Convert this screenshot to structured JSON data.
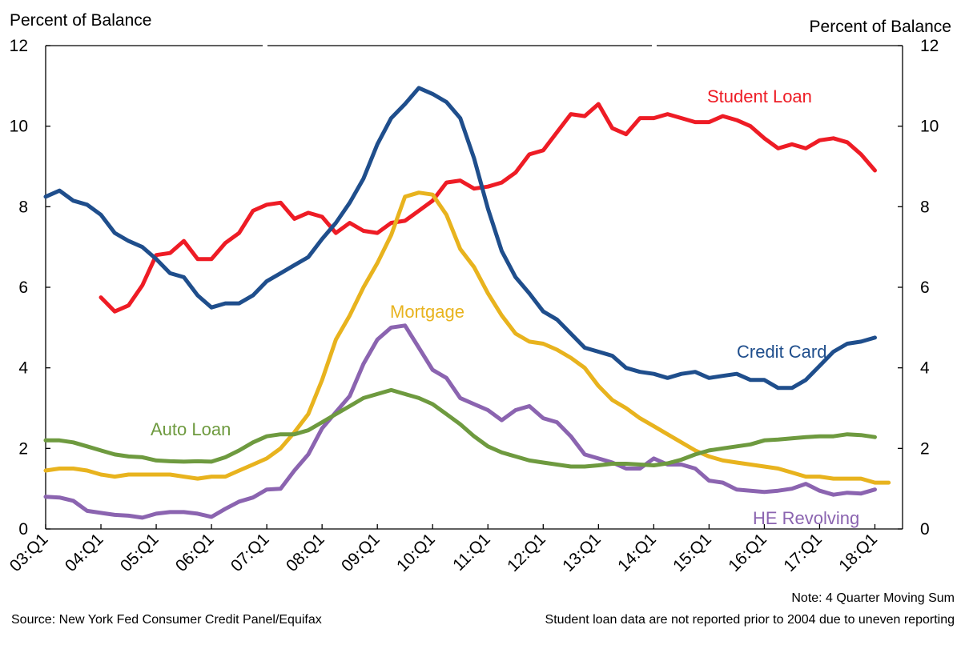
{
  "chart_data": {
    "type": "line",
    "y_axis_label_left": "Percent of Balance",
    "y_axis_label_right": "Percent of Balance",
    "ylim": [
      0,
      12
    ],
    "yticks": [
      0,
      2,
      4,
      6,
      8,
      10,
      12
    ],
    "xticks": [
      "03:Q1",
      "04:Q1",
      "05:Q1",
      "06:Q1",
      "07:Q1",
      "08:Q1",
      "09:Q1",
      "10:Q1",
      "11:Q1",
      "12:Q1",
      "13:Q1",
      "14:Q1",
      "15:Q1",
      "16:Q1",
      "17:Q1",
      "18:Q1"
    ],
    "grid": false,
    "legend": "labels placed on the lines",
    "x_start": "2003:Q1",
    "series": [
      {
        "name": "Student Loan",
        "color": "#ee1c25",
        "start": "2004:Q1",
        "label_anchor": "2014:Q2",
        "values": [
          5.75,
          5.4,
          5.55,
          6.05,
          6.8,
          6.85,
          7.15,
          6.7,
          6.7,
          7.1,
          7.35,
          7.9,
          8.05,
          8.1,
          7.7,
          7.85,
          7.75,
          7.35,
          7.6,
          7.4,
          7.35,
          7.6,
          7.65,
          7.9,
          8.15,
          8.6,
          8.65,
          8.45,
          8.5,
          8.6,
          8.85,
          9.3,
          9.4,
          9.85,
          10.3,
          10.25,
          10.55,
          9.95,
          9.8,
          10.2,
          10.2,
          10.3,
          10.2,
          10.1,
          10.1,
          10.25,
          10.15,
          10.0,
          9.7,
          9.45,
          9.55,
          9.45,
          9.65,
          9.7,
          9.6,
          9.3,
          8.9
        ]
      },
      {
        "name": "Credit Card",
        "color": "#1f4e8c",
        "start": "2003:Q1",
        "label_anchor": "2015:Q3",
        "values": [
          8.25,
          8.4,
          8.15,
          8.05,
          7.8,
          7.35,
          7.15,
          7.0,
          6.7,
          6.35,
          6.25,
          5.8,
          5.5,
          5.6,
          5.6,
          5.8,
          6.15,
          6.35,
          6.55,
          6.75,
          7.2,
          7.6,
          8.1,
          8.7,
          9.55,
          10.2,
          10.55,
          10.95,
          10.8,
          10.6,
          10.2,
          9.2,
          7.95,
          6.9,
          6.25,
          5.85,
          5.4,
          5.2,
          4.85,
          4.5,
          4.4,
          4.3,
          4.0,
          3.9,
          3.85,
          3.75,
          3.85,
          3.9,
          3.75,
          3.8,
          3.85,
          3.7,
          3.7,
          3.5,
          3.5,
          3.7,
          4.05,
          4.4,
          4.6,
          4.65,
          4.75
        ]
      },
      {
        "name": "Mortgage",
        "color": "#e8b31e",
        "start": "2003:Q1",
        "label_anchor": "2009:Q3",
        "values": [
          1.45,
          1.5,
          1.5,
          1.45,
          1.35,
          1.3,
          1.35,
          1.35,
          1.35,
          1.35,
          1.3,
          1.25,
          1.3,
          1.3,
          1.45,
          1.6,
          1.75,
          2.0,
          2.4,
          2.85,
          3.7,
          4.7,
          5.3,
          6.0,
          6.6,
          7.3,
          8.25,
          8.35,
          8.3,
          7.8,
          6.95,
          6.5,
          5.85,
          5.3,
          4.85,
          4.65,
          4.6,
          4.45,
          4.25,
          4.0,
          3.55,
          3.2,
          3.0,
          2.75,
          2.55,
          2.35,
          2.15,
          1.95,
          1.8,
          1.7,
          1.65,
          1.6,
          1.55,
          1.5,
          1.4,
          1.3,
          1.3,
          1.25,
          1.25,
          1.25,
          1.15,
          1.15
        ]
      },
      {
        "name": "HE Revolving",
        "color": "#8b64b0",
        "start": "2003:Q1",
        "label_anchor": "2016:Q2",
        "values": [
          0.8,
          0.78,
          0.7,
          0.45,
          0.4,
          0.35,
          0.33,
          0.28,
          0.38,
          0.42,
          0.42,
          0.38,
          0.3,
          0.5,
          0.68,
          0.78,
          0.98,
          1.0,
          1.45,
          1.85,
          2.5,
          2.9,
          3.3,
          4.1,
          4.7,
          5.0,
          5.05,
          4.5,
          3.95,
          3.75,
          3.25,
          3.1,
          2.95,
          2.7,
          2.95,
          3.05,
          2.75,
          2.65,
          2.3,
          1.85,
          1.75,
          1.65,
          1.5,
          1.5,
          1.75,
          1.6,
          1.6,
          1.5,
          1.2,
          1.15,
          0.98,
          0.95,
          0.92,
          0.95,
          1.0,
          1.12,
          0.95,
          0.85,
          0.9,
          0.88,
          0.98
        ]
      },
      {
        "name": "Auto Loan",
        "color": "#6e9a3f",
        "start": "2003:Q1",
        "label_anchor": "2005:Q4",
        "values": [
          2.2,
          2.2,
          2.15,
          2.05,
          1.95,
          1.85,
          1.8,
          1.78,
          1.7,
          1.68,
          1.67,
          1.68,
          1.67,
          1.78,
          1.95,
          2.15,
          2.3,
          2.35,
          2.35,
          2.45,
          2.65,
          2.85,
          3.05,
          3.25,
          3.35,
          3.45,
          3.35,
          3.25,
          3.1,
          2.85,
          2.6,
          2.3,
          2.05,
          1.9,
          1.8,
          1.7,
          1.65,
          1.6,
          1.55,
          1.55,
          1.58,
          1.62,
          1.62,
          1.6,
          1.58,
          1.63,
          1.72,
          1.85,
          1.95,
          2.0,
          2.05,
          2.1,
          2.2,
          2.22,
          2.25,
          2.28,
          2.3,
          2.3,
          2.35,
          2.33,
          2.28
        ]
      }
    ],
    "source": "Source: New York Fed Consumer Credit Panel/Equifax",
    "notes": [
      "Note: 4 Quarter Moving Sum",
      "Student loan data are not reported prior to 2004 due to uneven reporting"
    ]
  }
}
